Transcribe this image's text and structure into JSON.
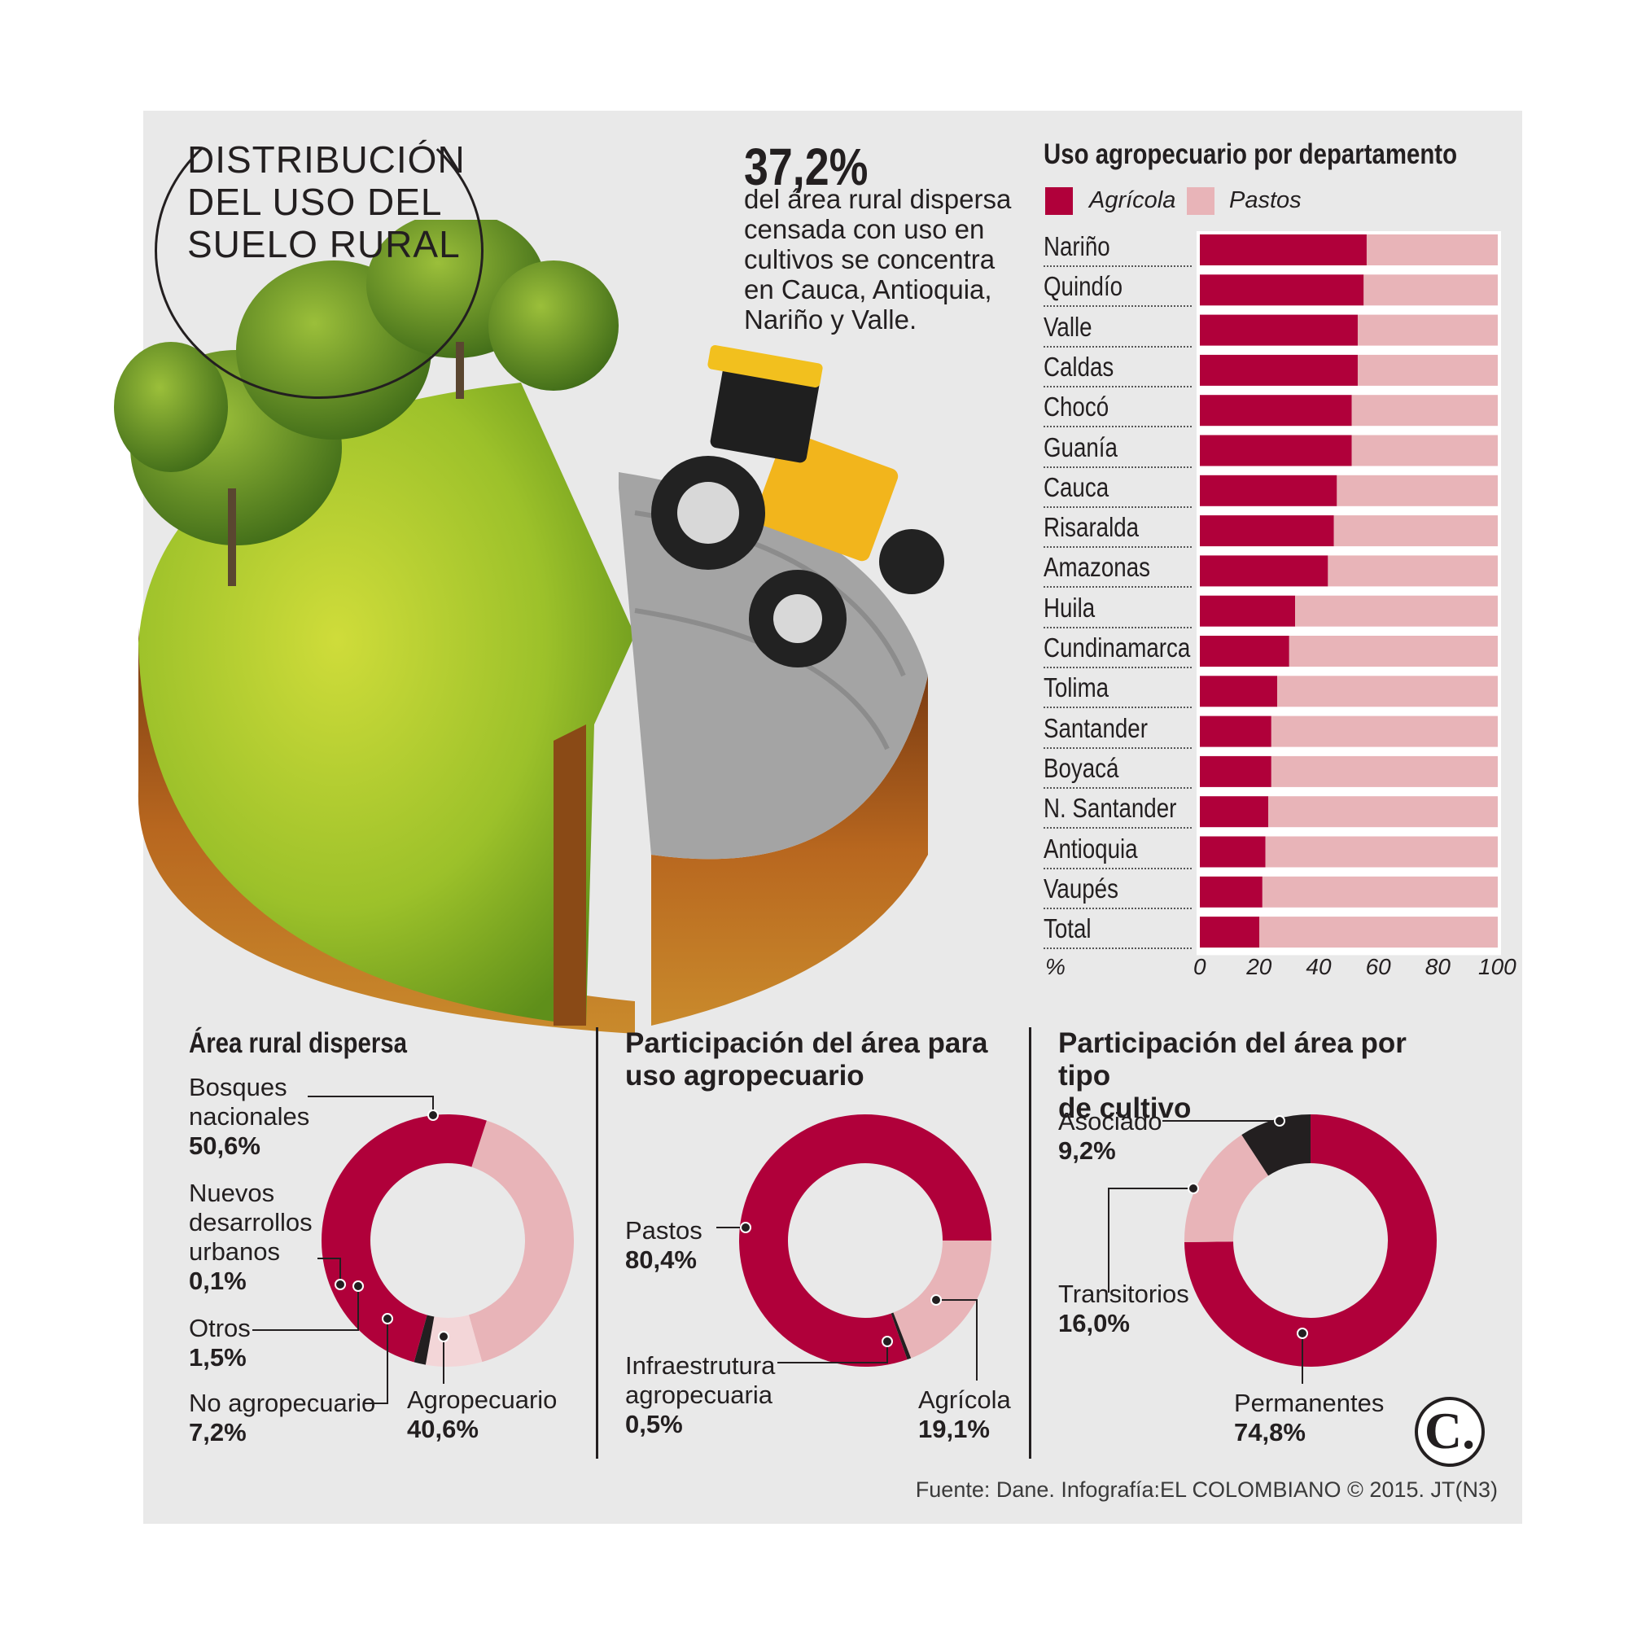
{
  "title": "DISTRIBUCIÓN\nDEL USO DEL\nSUELO RURAL",
  "highlight": {
    "value": "37,2%",
    "text": "del área rural dispersa censada con uso en cultivos se concentra en Cauca,  Antioquia, Nariño y Valle."
  },
  "colors": {
    "agricola": "#b0003a",
    "pastos": "#e8b4b8",
    "otros": "#f3d6d8",
    "dark": "#231f20"
  },
  "chart_data": [
    {
      "type": "bar",
      "orientation": "horizontal",
      "stacked": true,
      "title": "Uso agropecuario por departamento",
      "xlabel": "%",
      "xlim": [
        0,
        100
      ],
      "xticks": [
        "0",
        "20",
        "40",
        "60",
        "80",
        "100"
      ],
      "legend": [
        "Agrícola",
        "Pastos"
      ],
      "categories": [
        "Nariño",
        "Quindío",
        "Valle",
        "Caldas",
        "Chocó",
        "Guanía",
        "Cauca",
        "Risaralda",
        "Amazonas",
        "Huila",
        "Cundinamarca",
        "Tolima",
        "Santander",
        "Boyacá",
        "N. Santander",
        "Antioquia",
        "Vaupés",
        "Total"
      ],
      "series": [
        {
          "name": "Agrícola",
          "values": [
            56,
            55,
            53,
            53,
            51,
            51,
            46,
            45,
            43,
            32,
            30,
            26,
            24,
            24,
            23,
            22,
            21,
            20
          ]
        },
        {
          "name": "Pastos",
          "values": [
            44,
            45,
            47,
            47,
            49,
            49,
            54,
            55,
            57,
            68,
            70,
            74,
            76,
            76,
            77,
            78,
            79,
            80
          ]
        }
      ]
    },
    {
      "type": "pie",
      "donut": true,
      "title": "Área rural dispersa",
      "slices": [
        {
          "name": "Bosques nacionales",
          "label": "Bosques\nnacionales",
          "pct": "50,6%",
          "value": 50.6,
          "color": "#b0003a"
        },
        {
          "name": "Agropecuario",
          "label": "Agropecuario",
          "pct": "40,6%",
          "value": 40.6,
          "color": "#e8b4b8"
        },
        {
          "name": "No agropecuario",
          "label": "No agropecuario",
          "pct": "7,2%",
          "value": 7.2,
          "color": "#f3d6d8"
        },
        {
          "name": "Otros",
          "label": "Otros",
          "pct": "1,5%",
          "value": 1.5,
          "color": "#231f20"
        },
        {
          "name": "Nuevos desarrollos urbanos",
          "label": "Nuevos\ndesarrollos\nurbanos",
          "pct": "0,1%",
          "value": 0.1,
          "color": "#b0003a"
        }
      ]
    },
    {
      "type": "pie",
      "donut": true,
      "title": "Participación del área para uso agropecuario",
      "slices": [
        {
          "name": "Agrícola",
          "label": "Agrícola",
          "pct": "19,1%",
          "value": 19.1,
          "color": "#e8b4b8"
        },
        {
          "name": "Infraestrutura agropecuaria",
          "label": "Infraestrutura\nagropecuaria",
          "pct": "0,5%",
          "value": 0.5,
          "color": "#231f20"
        },
        {
          "name": "Pastos",
          "label": "Pastos",
          "pct": "80,4%",
          "value": 80.4,
          "color": "#b0003a"
        }
      ]
    },
    {
      "type": "pie",
      "donut": true,
      "title": "Participación del área por tipo de cultivo",
      "slices": [
        {
          "name": "Permanentes",
          "label": "Permanentes",
          "pct": "74,8%",
          "value": 74.8,
          "color": "#b0003a"
        },
        {
          "name": "Transitorios",
          "label": "Transitorios",
          "pct": "16,0%",
          "value": 16.0,
          "color": "#e8b4b8"
        },
        {
          "name": "Asociado",
          "label": "Asociado",
          "pct": "9,2%",
          "value": 9.2,
          "color": "#231f20"
        }
      ]
    }
  ],
  "source": "Fuente: Dane. Infografía:EL COLOMBIANO © 2015. JT(N3)",
  "logo": "C."
}
